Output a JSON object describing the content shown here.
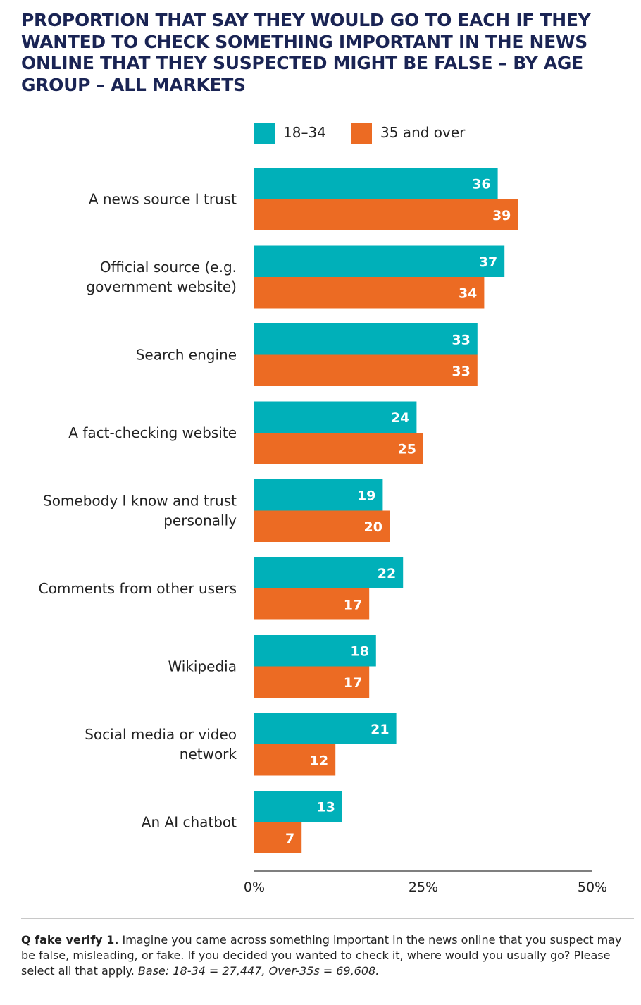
{
  "title": "PROPORTION THAT SAY THEY WOULD GO TO EACH IF THEY WANTED TO CHECK SOMETHING IMPORTANT IN THE NEWS ONLINE THAT THEY SUSPECTED MIGHT BE FALSE – BY AGE GROUP – ALL MARKETS",
  "colors": {
    "series_a": "#00b0b9",
    "series_b": "#ec6b23",
    "title": "#1a2454"
  },
  "chart_data": {
    "type": "bar",
    "orientation": "horizontal",
    "categories": [
      "A news source I trust",
      "Official source (e.g.\ngovernment website)",
      "Search engine",
      "A fact-checking website",
      "Somebody I know and trust\npersonally",
      "Comments from other users",
      "Wikipedia",
      "Social media or video\nnetwork",
      "An AI chatbot"
    ],
    "series": [
      {
        "name": "18–34",
        "values": [
          36,
          37,
          33,
          24,
          19,
          22,
          18,
          21,
          13
        ]
      },
      {
        "name": "35 and over",
        "values": [
          39,
          34,
          33,
          25,
          20,
          17,
          17,
          12,
          7
        ]
      }
    ],
    "xlim": [
      0,
      50
    ],
    "xticks": [
      "0%",
      "25%",
      "50%"
    ],
    "legend": "top"
  },
  "footnote": {
    "q_label": "Q fake verify 1.",
    "question": " Imagine you came across something important in the news online that you suspect may be false, misleading, or fake. If you decided you wanted to check it, where would you usually go? Please select all that apply. ",
    "base": "Base: 18-34 = 27,447, Over-35s = 69,608."
  }
}
